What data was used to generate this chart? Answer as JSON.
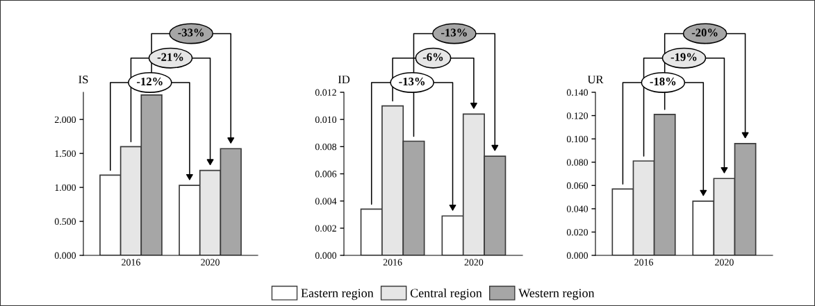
{
  "chart_data": [
    {
      "type": "bar",
      "ylabel": "IS",
      "categories": [
        "2016",
        "2020"
      ],
      "series": [
        {
          "color": "#ffffff",
          "values": [
            1.18,
            1.03
          ]
        },
        {
          "color": "#e6e6e6",
          "values": [
            1.6,
            1.25
          ]
        },
        {
          "color": "#a6a6a6",
          "values": [
            2.36,
            1.57
          ]
        }
      ],
      "ylim": [
        0,
        2.4
      ],
      "yticks": [
        {
          "value": 0,
          "label": "0.000"
        },
        {
          "value": 0.5,
          "label": "0.500"
        },
        {
          "value": 1.0,
          "label": "1.000"
        },
        {
          "value": 1.5,
          "label": "1.500"
        },
        {
          "value": 2.0,
          "label": "2.000"
        }
      ],
      "annotations": [
        "-12%",
        "-21%",
        "-33%"
      ],
      "grid": false
    },
    {
      "type": "bar",
      "ylabel": "ID",
      "categories": [
        "2016",
        "2020"
      ],
      "series": [
        {
          "name": "Eastern region",
          "color": "#ffffff",
          "values": [
            0.0034,
            0.0029
          ]
        },
        {
          "name": "Central region",
          "color": "#e6e6e6",
          "values": [
            0.011,
            0.0104
          ]
        },
        {
          "name": "Western region",
          "color": "#a6a6a6",
          "values": [
            0.0084,
            0.0073
          ]
        }
      ],
      "ylim": [
        0,
        0.012
      ],
      "yticks": [
        {
          "value": 0,
          "label": "0.000"
        },
        {
          "value": 0.002,
          "label": "0.002"
        },
        {
          "value": 0.004,
          "label": "0.004"
        },
        {
          "value": 0.006,
          "label": "0.006"
        },
        {
          "value": 0.008,
          "label": "0.008"
        },
        {
          "value": 0.01,
          "label": "0.010"
        },
        {
          "value": 0.012,
          "label": "0.012"
        }
      ],
      "annotations": [
        "-13%",
        "-6%",
        "-13%"
      ],
      "legend": "bottom",
      "grid": false
    },
    {
      "type": "bar",
      "ylabel": "UR",
      "categories": [
        "2016",
        "2020"
      ],
      "series": [
        {
          "color": "#ffffff",
          "values": [
            0.057,
            0.0465
          ]
        },
        {
          "color": "#e6e6e6",
          "values": [
            0.081,
            0.066
          ]
        },
        {
          "color": "#a6a6a6",
          "values": [
            0.121,
            0.096
          ]
        }
      ],
      "ylim": [
        0,
        0.14
      ],
      "yticks": [
        {
          "value": 0,
          "label": "0.000"
        },
        {
          "value": 0.02,
          "label": "0.020"
        },
        {
          "value": 0.04,
          "label": "0.040"
        },
        {
          "value": 0.06,
          "label": "0.060"
        },
        {
          "value": 0.08,
          "label": "0.080"
        },
        {
          "value": 0.1,
          "label": "0.100"
        },
        {
          "value": 0.12,
          "label": "0.120"
        },
        {
          "value": 0.14,
          "label": "0.140"
        }
      ],
      "annotations": [
        "-18%",
        "-19%",
        "-20%"
      ],
      "grid": false
    }
  ]
}
